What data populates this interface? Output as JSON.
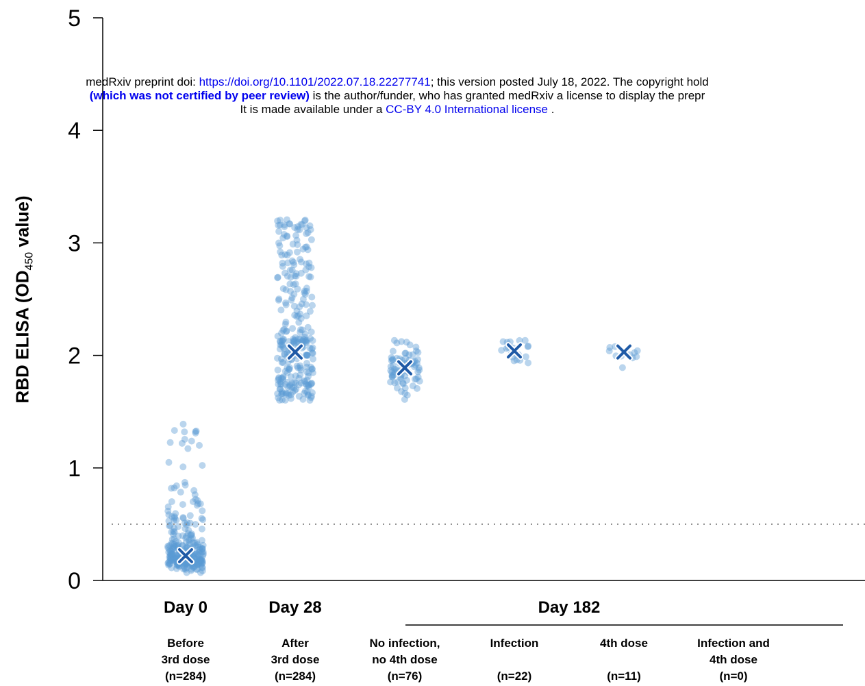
{
  "banner": {
    "line1_prefix": "medRxiv preprint doi: ",
    "line1_link": "https://doi.org/10.1101/2022.07.18.22277741",
    "line1_suffix": "; this version posted July 18, 2022. The copyright hold",
    "line2_bold": "(which was not certified by peer review)",
    "line2_suffix": " is the author/funder, who has granted medRxiv a license to display the prepr",
    "line3_prefix": "It is made available under a ",
    "line3_link": "CC-BY 4.0 International license",
    "line3_suffix": " ."
  },
  "chart_data": {
    "type": "scatter",
    "title": "",
    "ylabel_main": "RBD ELISA (OD",
    "ylabel_sub": "450",
    "ylabel_tail": " value)",
    "ylim": [
      0,
      5
    ],
    "yticks": [
      0,
      1,
      2,
      3,
      4,
      5
    ],
    "cutoff": 0.5,
    "grid": false,
    "day_labels": [
      {
        "label": "Day 0",
        "group": 0
      },
      {
        "label": "Day 28",
        "group": 1
      },
      {
        "label": "Day 182",
        "group": 3.5
      }
    ],
    "groups": [
      {
        "label_lines": [
          "Before",
          "3rd dose"
        ],
        "n_label": "(n=284)",
        "n": 284,
        "median": 0.22
      },
      {
        "label_lines": [
          "After",
          "3rd dose"
        ],
        "n_label": "(n=284)",
        "n": 284,
        "median": 2.03
      },
      {
        "label_lines": [
          "No infection,",
          "no 4th dose"
        ],
        "n_label": "(n=76)",
        "n": 76,
        "median": 1.89
      },
      {
        "label_lines": [
          "Infection",
          ""
        ],
        "n_label": "(n=22)",
        "n": 22,
        "median": 2.04
      },
      {
        "label_lines": [
          "4th dose",
          ""
        ],
        "n_label": "(n=11)",
        "n": 11,
        "median": 2.03
      },
      {
        "label_lines": [
          "Infection and",
          "4th dose"
        ],
        "n_label": "(n=0)",
        "n": 0,
        "median": null
      }
    ],
    "colors": {
      "point": "#5b9bd5",
      "median": "#1f5aa6",
      "cutoff": "#888888"
    }
  }
}
